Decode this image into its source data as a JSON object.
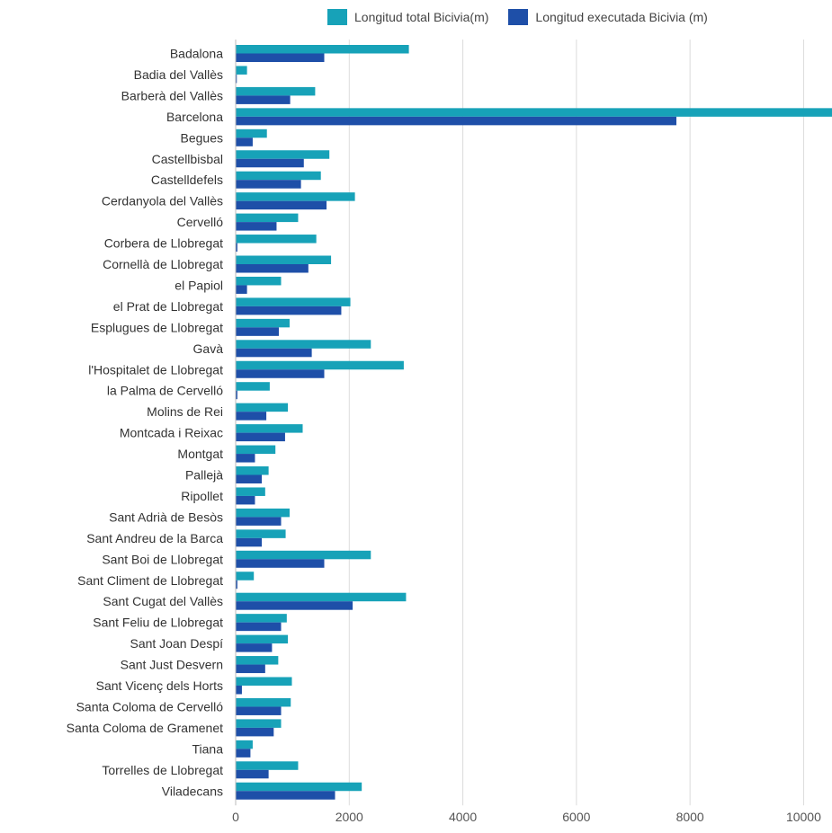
{
  "chart_data": {
    "type": "bar",
    "orientation": "horizontal",
    "categories": [
      "Badalona",
      "Badia del Vallès",
      "Barberà del Vallès",
      "Barcelona",
      "Begues",
      "Castellbisbal",
      "Castelldefels",
      "Cerdanyola del Vallès",
      "Cervelló",
      "Corbera de Llobregat",
      "Cornellà de Llobregat",
      "el Papiol",
      "el Prat de Llobregat",
      "Esplugues de Llobregat",
      "Gavà",
      "l'Hospitalet de Llobregat",
      "la Palma de Cervelló",
      "Molins de Rei",
      "Montcada i Reixac",
      "Montgat",
      "Pallejà",
      "Ripollet",
      "Sant Adrià de Besòs",
      "Sant Andreu de la Barca",
      "Sant Boi de Llobregat",
      "Sant Climent de Llobregat",
      "Sant Cugat del Vallès",
      "Sant Feliu de Llobregat",
      "Sant Joan Despí",
      "Sant Just Desvern",
      "Sant Vicenç dels Horts",
      "Santa Coloma de Cervelló",
      "Santa Coloma de Gramenet",
      "Tiana",
      "Torrelles de Llobregat",
      "Viladecans"
    ],
    "series": [
      {
        "name": "Longitud total Bicivia(m)",
        "color": "#17a2b8",
        "values": [
          3050,
          200,
          1400,
          10500,
          550,
          1650,
          1500,
          2100,
          1100,
          1420,
          1680,
          800,
          2020,
          950,
          2380,
          2960,
          600,
          920,
          1180,
          700,
          580,
          520,
          950,
          880,
          2380,
          320,
          3000,
          900,
          920,
          750,
          990,
          970,
          800,
          300,
          1100,
          2220
        ]
      },
      {
        "name": "Longitud executada Bicivia (m)",
        "color": "#1e4fa8",
        "values": [
          1560,
          20,
          960,
          7760,
          300,
          1200,
          1150,
          1600,
          720,
          30,
          1280,
          200,
          1860,
          760,
          1340,
          1560,
          30,
          540,
          870,
          340,
          460,
          340,
          800,
          460,
          1560,
          30,
          2060,
          800,
          640,
          520,
          110,
          800,
          670,
          260,
          580,
          1750
        ]
      }
    ],
    "x_ticks": [
      "0",
      "2000",
      "4000",
      "6000",
      "8000",
      "10000"
    ],
    "xlim": [
      0,
      10500
    ],
    "grid": true,
    "legend_position": "top",
    "title": "",
    "xlabel": "",
    "ylabel": ""
  }
}
